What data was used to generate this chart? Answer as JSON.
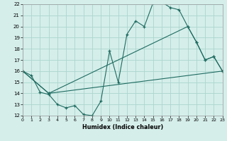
{
  "xlabel": "Humidex (Indice chaleur)",
  "xlim": [
    0,
    23
  ],
  "ylim": [
    12,
    22
  ],
  "xticks": [
    0,
    1,
    2,
    3,
    4,
    5,
    6,
    7,
    8,
    9,
    10,
    11,
    12,
    13,
    14,
    15,
    16,
    17,
    18,
    19,
    20,
    21,
    22,
    23
  ],
  "yticks": [
    12,
    13,
    14,
    15,
    16,
    17,
    18,
    19,
    20,
    21,
    22
  ],
  "bg_color": "#d5eeea",
  "grid_color": "#aad5ce",
  "line_color": "#1e6b60",
  "line1_x": [
    0,
    1,
    2,
    3,
    4,
    5,
    6,
    7,
    8,
    9,
    10,
    11,
    12,
    13,
    14,
    15,
    16,
    17,
    18,
    19,
    20,
    21,
    22,
    23
  ],
  "line1_y": [
    16.0,
    15.6,
    14.1,
    13.9,
    13.0,
    12.7,
    12.9,
    12.1,
    12.0,
    13.3,
    17.8,
    15.0,
    19.3,
    20.5,
    20.0,
    22.1,
    22.2,
    21.7,
    21.5,
    20.0,
    18.6,
    17.0,
    17.3,
    16.0
  ],
  "line2_x": [
    0,
    3,
    19,
    20,
    21,
    22,
    23
  ],
  "line2_y": [
    16.0,
    14.0,
    20.0,
    18.6,
    17.0,
    17.3,
    16.0
  ],
  "line3_x": [
    0,
    3,
    23
  ],
  "line3_y": [
    16.0,
    14.0,
    16.0
  ]
}
